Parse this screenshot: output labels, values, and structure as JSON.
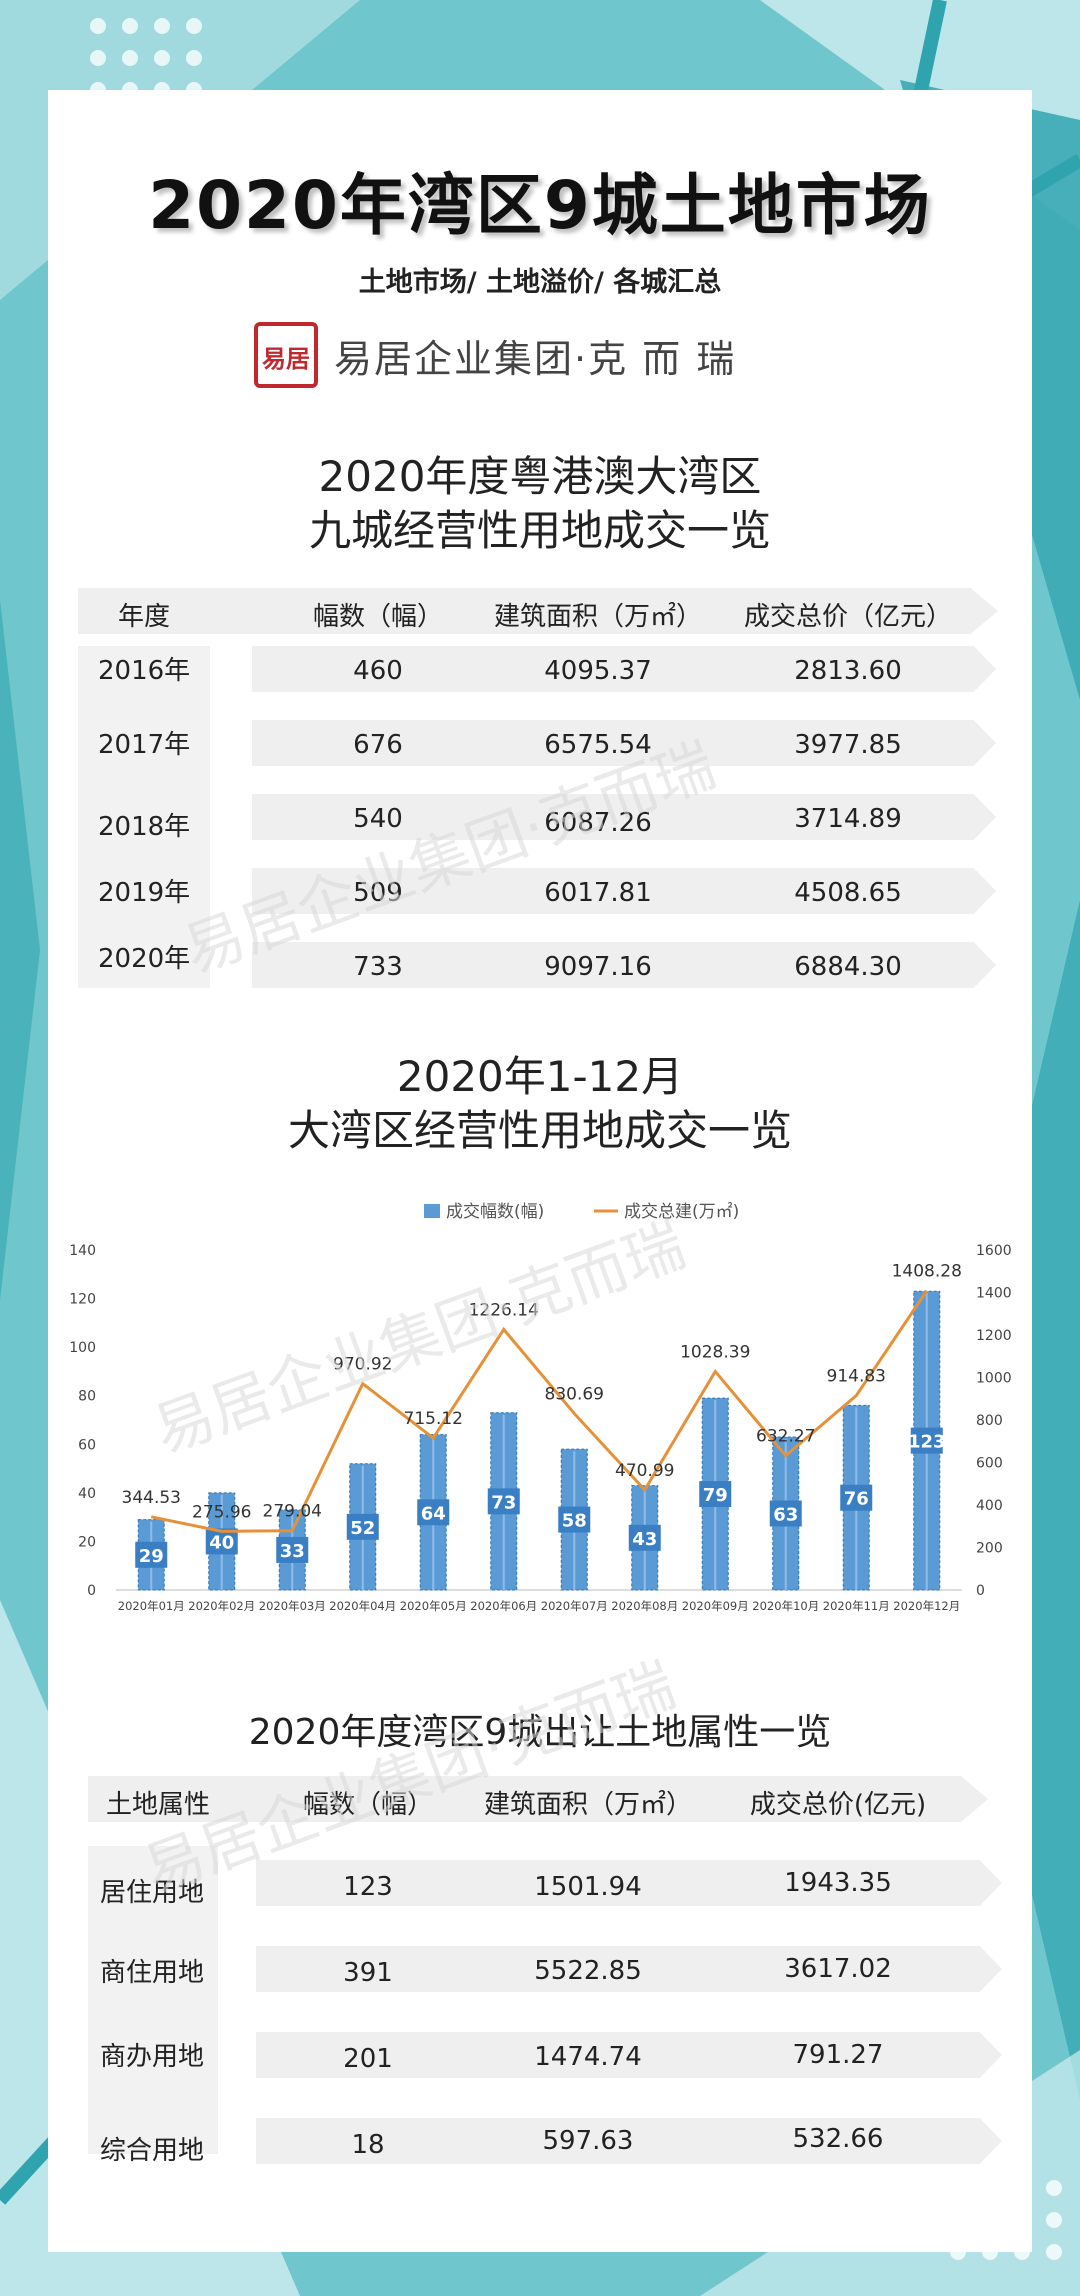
{
  "header": {
    "title": "2020年湾区9城土地市场",
    "subtitle": "土地市场/ 土地溢价/ 各城汇总",
    "seal_text": "易居",
    "brand": "易居企业集团·克 而 瑞"
  },
  "table1": {
    "title_line1": "2020年度粤港澳大湾区",
    "title_line2": "九城经营性用地成交一览",
    "headers": [
      "年度",
      "幅数（幅）",
      "建筑面积（万㎡）",
      "成交总价（亿元）"
    ],
    "rows": [
      {
        "label": "2016年",
        "count": "460",
        "area": "4095.37",
        "price": "2813.60"
      },
      {
        "label": "2017年",
        "count": "676",
        "area": "6575.54",
        "price": "3977.85"
      },
      {
        "label": "2018年",
        "count": "540",
        "area": "6087.26",
        "price": "3714.89"
      },
      {
        "label": "2019年",
        "count": "509",
        "area": "6017.81",
        "price": "4508.65"
      },
      {
        "label": "2020年",
        "count": "733",
        "area": "9097.16",
        "price": "6884.30"
      }
    ]
  },
  "chart_section": {
    "title_line1": "2020年1-12月",
    "title_line2": "大湾区经营性用地成交一览"
  },
  "chart_data": {
    "type": "bar",
    "categories": [
      "2020年01月",
      "2020年02月",
      "2020年03月",
      "2020年04月",
      "2020年05月",
      "2020年06月",
      "2020年07月",
      "2020年08月",
      "2020年09月",
      "2020年10月",
      "2020年11月",
      "2020年12月"
    ],
    "series": [
      {
        "name": "成交幅数(幅)",
        "type": "bar",
        "axis": "left",
        "values": [
          29,
          40,
          33,
          52,
          64,
          73,
          58,
          43,
          79,
          63,
          76,
          123
        ],
        "labels": [
          "29",
          "40",
          "33",
          "52",
          "64",
          "73",
          "58",
          "43",
          "79",
          "63",
          "76",
          "123"
        ]
      },
      {
        "name": "成交总建(万㎡)",
        "type": "line",
        "axis": "right",
        "values": [
          344.53,
          275.96,
          279.04,
          970.92,
          715.12,
          1226.14,
          830.69,
          470.99,
          1028.39,
          632.27,
          914.83,
          1408.28
        ],
        "labels": [
          "344.53",
          "275.96",
          "279.04",
          "970.92",
          "715.12",
          "1226.14",
          "830.69",
          "470.99",
          "1028.39",
          "632.27",
          "914.83",
          "1408.28"
        ]
      }
    ],
    "ylim_left": [
      0,
      140
    ],
    "ylim_right": [
      0,
      1600
    ],
    "left_ticks": [
      "0",
      "20",
      "40",
      "60",
      "80",
      "100",
      "120",
      "140"
    ],
    "right_ticks": [
      "0",
      "200",
      "400",
      "600",
      "800",
      "1000",
      "1200",
      "1400",
      "1600"
    ],
    "legend_position": "top",
    "grid": false,
    "colors": {
      "bar": "#5b9bd5",
      "bar_edge": "#2e75b6",
      "line": "#e69138"
    }
  },
  "table2": {
    "title": "2020年度湾区9城出让土地属性一览",
    "headers": [
      "土地属性",
      "幅数（幅）",
      "建筑面积（万㎡）",
      "成交总价(亿元)"
    ],
    "rows": [
      {
        "label": "居住用地",
        "count": "123",
        "area": "1501.94",
        "price": "1943.35"
      },
      {
        "label": "商住用地",
        "count": "391",
        "area": "5522.85",
        "price": "3617.02"
      },
      {
        "label": "商办用地",
        "count": "201",
        "area": "1474.74",
        "price": "791.27"
      },
      {
        "label": "综合用地",
        "count": "18",
        "area": "597.63",
        "price": "532.66"
      }
    ]
  },
  "watermark": "易居企业集团·克而瑞",
  "colors": {
    "teal": "#6fc6cc",
    "teal_dark": "#48b3bd",
    "accent_red": "#c0282d"
  }
}
